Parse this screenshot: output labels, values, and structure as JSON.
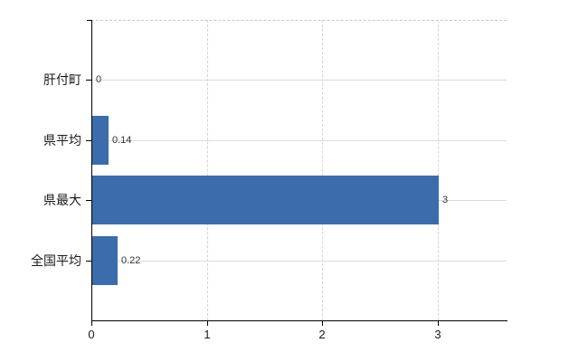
{
  "chart_data": {
    "type": "bar",
    "orientation": "horizontal",
    "title": "",
    "xlabel": "",
    "ylabel": "",
    "categories": [
      "肝付町",
      "県平均",
      "県最大",
      "全国平均"
    ],
    "values": [
      0,
      0.14,
      3,
      0.22
    ],
    "value_labels": [
      "0",
      "0.14",
      "3",
      "0.22"
    ],
    "x_ticks": [
      0,
      1,
      2,
      3
    ],
    "x_tick_labels": [
      "0",
      "1",
      "2",
      "3"
    ],
    "xlim": [
      0,
      3.6
    ],
    "grid": "on",
    "legend": "none",
    "bar_color": "#3c6cac",
    "axis_color": "#000000",
    "h_gridline_color": "#d9dfd9",
    "v_gridline_color": "#d4d4d4",
    "top_border_color": "#c9c9c9",
    "background_color": "#ffffff"
  }
}
